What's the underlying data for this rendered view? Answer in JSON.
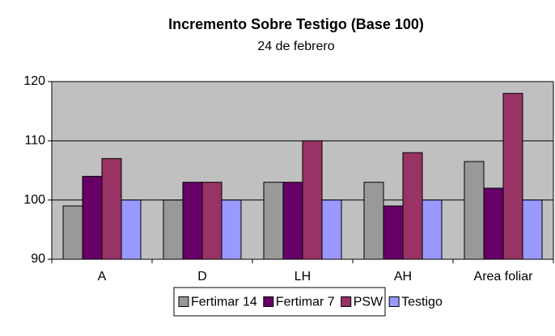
{
  "chart_data": {
    "type": "bar",
    "title": "Incremento Sobre Testigo (Base 100)",
    "subtitle": "24 de febrero",
    "categories": [
      "A",
      "D",
      "LH",
      "AH",
      "Area foliar"
    ],
    "series": [
      {
        "name": "Fertimar 14",
        "color": "#999999",
        "values": [
          99,
          100,
          103,
          103,
          106.5
        ]
      },
      {
        "name": "Fertimar 7",
        "color": "#660066",
        "values": [
          104,
          103,
          103,
          99,
          102
        ]
      },
      {
        "name": "PSW",
        "color": "#993366",
        "values": [
          107,
          103,
          110,
          108,
          118
        ]
      },
      {
        "name": "Testigo",
        "color": "#9999ff",
        "values": [
          100,
          100,
          100,
          100,
          100
        ]
      }
    ],
    "ylim": [
      90,
      120
    ],
    "yticks": [
      90,
      100,
      110,
      120
    ],
    "grid": true,
    "legend": "bottom",
    "plot_background": "#c0c0c0"
  }
}
